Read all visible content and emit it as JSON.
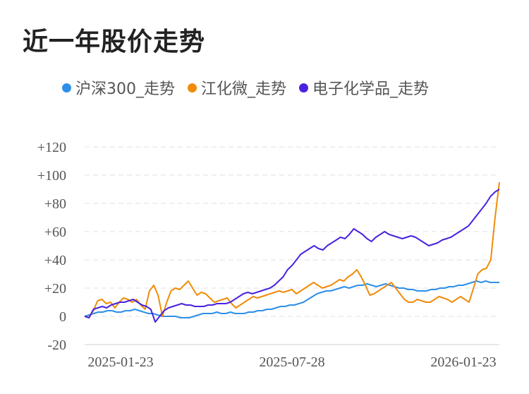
{
  "title": "近一年股价走势",
  "chart_data": {
    "type": "line",
    "ylim": [
      -20,
      120
    ],
    "yticks": [
      "-20",
      "0",
      "+20",
      "+40",
      "+60",
      "+80",
      "+100",
      "+120"
    ],
    "ytick_values": [
      -20,
      0,
      20,
      40,
      60,
      80,
      100,
      120
    ],
    "xticks": [
      "2025-01-23",
      "2025-07-28",
      "2026-01-23"
    ],
    "grid": true,
    "legend_position": "top",
    "series": [
      {
        "name": "沪深300_走势",
        "color": "#2e8fe8",
        "values": [
          0,
          1,
          2,
          3,
          3,
          4,
          4,
          3,
          3,
          4,
          4,
          5,
          4,
          3,
          2,
          2,
          1,
          0,
          0,
          0,
          0,
          -1,
          -1,
          -1,
          0,
          1,
          2,
          2,
          2,
          3,
          2,
          2,
          3,
          2,
          2,
          2,
          3,
          3,
          4,
          4,
          5,
          5,
          6,
          7,
          7,
          8,
          8,
          9,
          10,
          12,
          14,
          16,
          17,
          18,
          18,
          19,
          20,
          21,
          20,
          21,
          22,
          22,
          23,
          22,
          21,
          22,
          23,
          22,
          21,
          20,
          20,
          19,
          19,
          18,
          18,
          18,
          19,
          19,
          20,
          20,
          21,
          21,
          22,
          22,
          23,
          24,
          25,
          24,
          25,
          24,
          24,
          24
        ]
      },
      {
        "name": "江化微_走势",
        "color": "#f08c0a",
        "values": [
          0,
          -1,
          4,
          11,
          12,
          9,
          10,
          6,
          10,
          13,
          12,
          10,
          12,
          8,
          5,
          18,
          22,
          15,
          0,
          10,
          18,
          20,
          19,
          22,
          25,
          20,
          15,
          17,
          16,
          13,
          10,
          11,
          12,
          13,
          9,
          6,
          8,
          10,
          12,
          14,
          13,
          14,
          15,
          16,
          17,
          18,
          17,
          18,
          19,
          16,
          18,
          20,
          22,
          24,
          22,
          20,
          21,
          22,
          24,
          26,
          25,
          28,
          30,
          33,
          28,
          22,
          15,
          16,
          18,
          20,
          22,
          24,
          20,
          16,
          12,
          10,
          10,
          12,
          11,
          10,
          10,
          12,
          14,
          13,
          12,
          10,
          12,
          14,
          12,
          10,
          20,
          30,
          33,
          34,
          40,
          70,
          95
        ]
      },
      {
        "name": "电子化学品_走势",
        "color": "#4a22e0",
        "values": [
          0,
          -1,
          5,
          6,
          7,
          6,
          8,
          9,
          10,
          10,
          11,
          12,
          10,
          8,
          7,
          5,
          -4,
          0,
          4,
          6,
          7,
          8,
          9,
          8,
          8,
          7,
          7,
          7,
          8,
          8,
          9,
          9,
          9,
          10,
          12,
          14,
          16,
          17,
          16,
          17,
          18,
          19,
          20,
          22,
          25,
          28,
          33,
          36,
          40,
          44,
          46,
          48,
          50,
          48,
          47,
          50,
          52,
          54,
          56,
          55,
          58,
          62,
          60,
          58,
          55,
          53,
          56,
          58,
          60,
          58,
          57,
          56,
          55,
          56,
          57,
          56,
          54,
          52,
          50,
          51,
          52,
          54,
          55,
          56,
          58,
          60,
          62,
          64,
          68,
          72,
          76,
          80,
          85,
          88,
          90
        ]
      }
    ]
  }
}
